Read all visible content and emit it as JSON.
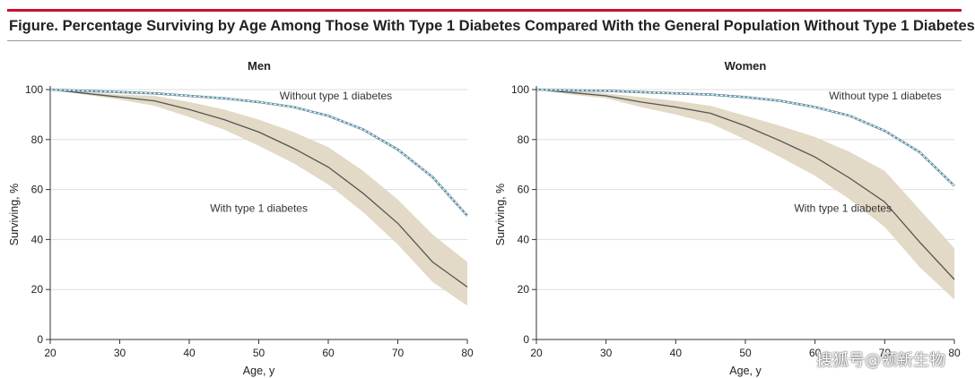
{
  "figure": {
    "title": "Figure. Percentage Surviving by Age Among Those With Type 1 Diabetes Compared With the General Population Without Type 1 Diabetes"
  },
  "watermark": "搜狐号@领新生物",
  "colors": {
    "accent_rule": "#c8102e",
    "band_fill": "#e2d9c6",
    "t1d_line": "#555555",
    "general_line": "#5f8fa3",
    "grid": "#dddddd"
  },
  "chart_data": [
    {
      "type": "line",
      "title": "Men",
      "xlabel": "Age, y",
      "ylabel": "Surviving, %",
      "xlim": [
        20,
        80
      ],
      "ylim": [
        0,
        100
      ],
      "x_ticks": [
        20,
        30,
        40,
        50,
        60,
        70,
        80
      ],
      "y_ticks": [
        0,
        20,
        40,
        60,
        80,
        100
      ],
      "grid": true,
      "series": [
        {
          "name": "Without type 1 diabetes",
          "x": [
            20,
            25,
            30,
            35,
            40,
            45,
            50,
            55,
            60,
            65,
            70,
            75,
            80
          ],
          "values": [
            100,
            99.5,
            99,
            98.5,
            97.5,
            96.5,
            95,
            93,
            89.5,
            84,
            76,
            65,
            49.5
          ]
        },
        {
          "name": "With type 1 diabetes",
          "x": [
            20,
            25,
            30,
            35,
            40,
            45,
            50,
            55,
            60,
            65,
            70,
            75,
            80
          ],
          "values": [
            100,
            98.5,
            97,
            95.5,
            92,
            88,
            83,
            76.5,
            69,
            58.5,
            46.5,
            31,
            21
          ],
          "lower": [
            100,
            98,
            96,
            93.5,
            89,
            84,
            77.5,
            70.5,
            62,
            51,
            38,
            23,
            13.5
          ],
          "upper": [
            100,
            99,
            98,
            97.5,
            95,
            92,
            88,
            83,
            77,
            67.5,
            56,
            42,
            31
          ]
        }
      ],
      "annotations": [
        {
          "text": "Without type 1 diabetes",
          "x": 53,
          "y": 96
        },
        {
          "text": "With type 1 diabetes",
          "x": 43,
          "y": 51
        }
      ]
    },
    {
      "type": "line",
      "title": "Women",
      "xlabel": "Age, y",
      "ylabel": "Surviving, %",
      "xlim": [
        20,
        80
      ],
      "ylim": [
        0,
        100
      ],
      "x_ticks": [
        20,
        30,
        40,
        50,
        60,
        70,
        80
      ],
      "y_ticks": [
        0,
        20,
        40,
        60,
        80,
        100
      ],
      "grid": true,
      "series": [
        {
          "name": "Without type 1 diabetes",
          "x": [
            20,
            25,
            30,
            35,
            40,
            45,
            50,
            55,
            60,
            65,
            70,
            75,
            80
          ],
          "values": [
            100,
            99.7,
            99.5,
            99,
            98.5,
            98,
            97,
            95.5,
            93,
            89.5,
            83.5,
            75,
            61.5
          ]
        },
        {
          "name": "With type 1 diabetes",
          "x": [
            20,
            25,
            30,
            35,
            40,
            45,
            50,
            55,
            60,
            65,
            70,
            75,
            80
          ],
          "values": [
            100,
            98.8,
            97.5,
            95,
            93,
            90.5,
            85.5,
            79.5,
            73,
            64.5,
            55,
            39,
            24
          ],
          "lower": [
            100,
            98,
            96.5,
            93,
            90,
            86.5,
            80,
            73,
            65.5,
            56,
            45,
            29,
            16
          ],
          "upper": [
            100,
            99.4,
            98.5,
            97,
            95.5,
            93.5,
            89.5,
            85.5,
            81,
            75,
            67.5,
            52,
            36.5
          ]
        }
      ],
      "annotations": [
        {
          "text": "Without type 1 diabetes",
          "x": 62,
          "y": 96
        },
        {
          "text": "With type 1 diabetes",
          "x": 57,
          "y": 51
        }
      ]
    }
  ]
}
